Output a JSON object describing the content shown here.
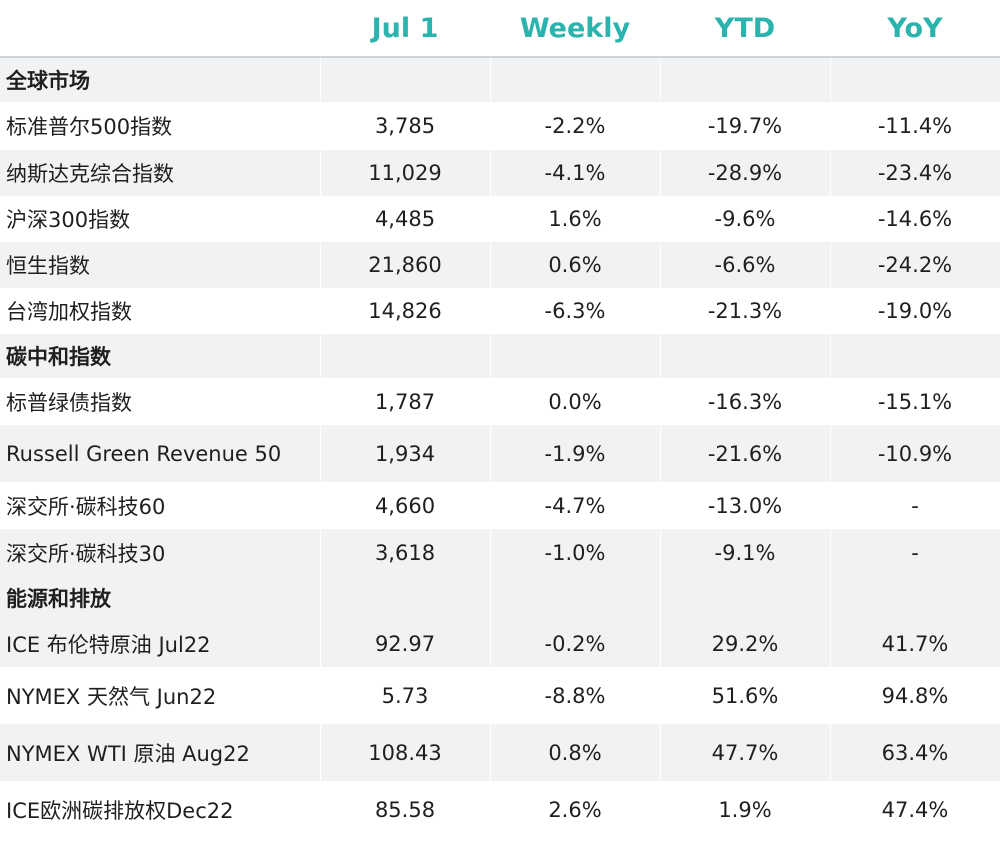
{
  "headers": [
    "",
    "Jul 1",
    "Weekly",
    "YTD",
    "YoY"
  ],
  "sections": [
    {
      "title": "全球市场",
      "rows": [
        {
          "name": "标准普尔500指数",
          "jul1": "3,785",
          "weekly": "-2.2%",
          "ytd": "-19.7%",
          "yoy": "-11.4%"
        },
        {
          "name": "纳斯达克综合指数",
          "jul1": "11,029",
          "weekly": "-4.1%",
          "ytd": "-28.9%",
          "yoy": "-23.4%"
        },
        {
          "name": "沪深300指数",
          "jul1": "4,485",
          "weekly": "1.6%",
          "ytd": "-9.6%",
          "yoy": "-14.6%"
        },
        {
          "name": "恒生指数",
          "jul1": "21,860",
          "weekly": "0.6%",
          "ytd": "-6.6%",
          "yoy": "-24.2%"
        },
        {
          "name": "台湾加权指数",
          "jul1": "14,826",
          "weekly": "-6.3%",
          "ytd": "-21.3%",
          "yoy": "-19.0%"
        }
      ]
    },
    {
      "title": "碳中和指数",
      "rows": [
        {
          "name": "标普绿债指数",
          "jul1": "1,787",
          "weekly": "0.0%",
          "ytd": "-16.3%",
          "yoy": "-15.1%"
        },
        {
          "name": "Russell Green Revenue 50",
          "jul1": "1,934",
          "weekly": "-1.9%",
          "ytd": "-21.6%",
          "yoy": "-10.9%"
        },
        {
          "name": "深交所·碳科技60",
          "jul1": "4,660",
          "weekly": "-4.7%",
          "ytd": "-13.0%",
          "yoy": "-"
        },
        {
          "name": "深交所·碳科技30",
          "jul1": "3,618",
          "weekly": "-1.0%",
          "ytd": "-9.1%",
          "yoy": "-"
        }
      ]
    },
    {
      "title": "能源和排放",
      "rows": [
        {
          "name": "ICE 布伦特原油 Jul22",
          "jul1": "92.97",
          "weekly": "-0.2%",
          "ytd": "29.2%",
          "yoy": "41.7%"
        },
        {
          "name": "NYMEX 天然气 Jun22",
          "jul1": "5.73",
          "weekly": "-8.8%",
          "ytd": "51.6%",
          "yoy": "94.8%"
        },
        {
          "name": "NYMEX WTI 原油 Aug22",
          "jul1": "108.43",
          "weekly": "0.8%",
          "ytd": "47.7%",
          "yoy": "63.4%"
        },
        {
          "name": "ICE欧洲碳排放权Dec22",
          "jul1": "85.58",
          "weekly": "2.6%",
          "ytd": "1.9%",
          "yoy": "47.4%"
        }
      ]
    }
  ]
}
